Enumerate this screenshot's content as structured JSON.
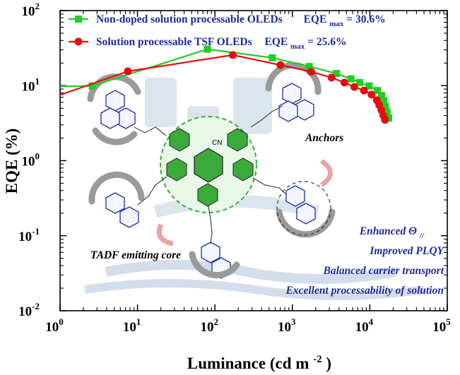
{
  "chart_data": {
    "type": "line",
    "xscale": "log",
    "yscale": "log",
    "xlim": [
      1,
      100000
    ],
    "ylim": [
      0.01,
      100
    ],
    "xlabel": "Luminance (cd m",
    "xlabel_sup": "-2",
    "xlabel_end": ")",
    "ylabel": "EQE (%)",
    "x_ticks": [
      {
        "value": 1,
        "base": "10",
        "exp": "0"
      },
      {
        "value": 10,
        "base": "10",
        "exp": "1"
      },
      {
        "value": 100,
        "base": "10",
        "exp": "2"
      },
      {
        "value": 1000,
        "base": "10",
        "exp": "3"
      },
      {
        "value": 10000,
        "base": "10",
        "exp": "4"
      },
      {
        "value": 100000,
        "base": "10",
        "exp": "5"
      }
    ],
    "y_ticks": [
      {
        "value": 0.01,
        "base": "10",
        "exp": "-2"
      },
      {
        "value": 0.1,
        "base": "10",
        "exp": "-1"
      },
      {
        "value": 1,
        "base": "10",
        "exp": "0"
      },
      {
        "value": 10,
        "base": "10",
        "exp": "1"
      },
      {
        "value": 100,
        "base": "10",
        "exp": "2"
      }
    ],
    "series": [
      {
        "name": "Non-doped solution processable OLEDs",
        "legend_prefix": "Non-doped solution processable OLEDs",
        "legend_eqe": "EQE",
        "legend_sub": "max",
        "legend_value": "= 30.6%",
        "color": "#22cc22",
        "marker": "square",
        "x": [
          1,
          2.6,
          80,
          550,
          1650,
          3700,
          5700,
          7400,
          9800,
          12500,
          14200,
          15100,
          15900,
          16700,
          17500
        ],
        "y": [
          9.8,
          9.9,
          30.6,
          23.5,
          18.0,
          14.5,
          12.3,
          11.0,
          9.9,
          8.6,
          7.4,
          6.3,
          5.3,
          4.4,
          3.7
        ]
      },
      {
        "name": "Solution processable  TSF OLEDs",
        "legend_prefix": "Solution processable  TSF OLEDs",
        "legend_eqe": "EQE",
        "legend_sub": "max",
        "legend_value": "= 25.6%",
        "color": "#e01010",
        "marker": "circle",
        "x": [
          1,
          7.5,
          170,
          700,
          1750,
          3200,
          4700,
          6300,
          8400,
          10500,
          12300,
          13200,
          14100,
          14900,
          15700
        ],
        "y": [
          7.5,
          15.5,
          25.6,
          18.8,
          15.3,
          12.8,
          11.0,
          9.6,
          8.6,
          7.6,
          6.4,
          5.5,
          4.7,
          4.0,
          3.5
        ]
      }
    ],
    "annotations": {
      "anchors": "Anchors",
      "core": "TADF emitting core",
      "cn_group": "CN",
      "features": [
        "Enhanced Θ",
        "Improved PLQY",
        "Balanced carrier transport",
        "Excellent processability of solution"
      ],
      "feature_sub": "//"
    },
    "colors": {
      "axis": "#000000",
      "legend_text": "#1f2a9a",
      "feature_text": "#1f2a9a",
      "core_dash": "#3aaa3a",
      "core_ring": "#c8ecc8",
      "arrows": "#999999",
      "watermark": "#c9d6e6"
    }
  }
}
